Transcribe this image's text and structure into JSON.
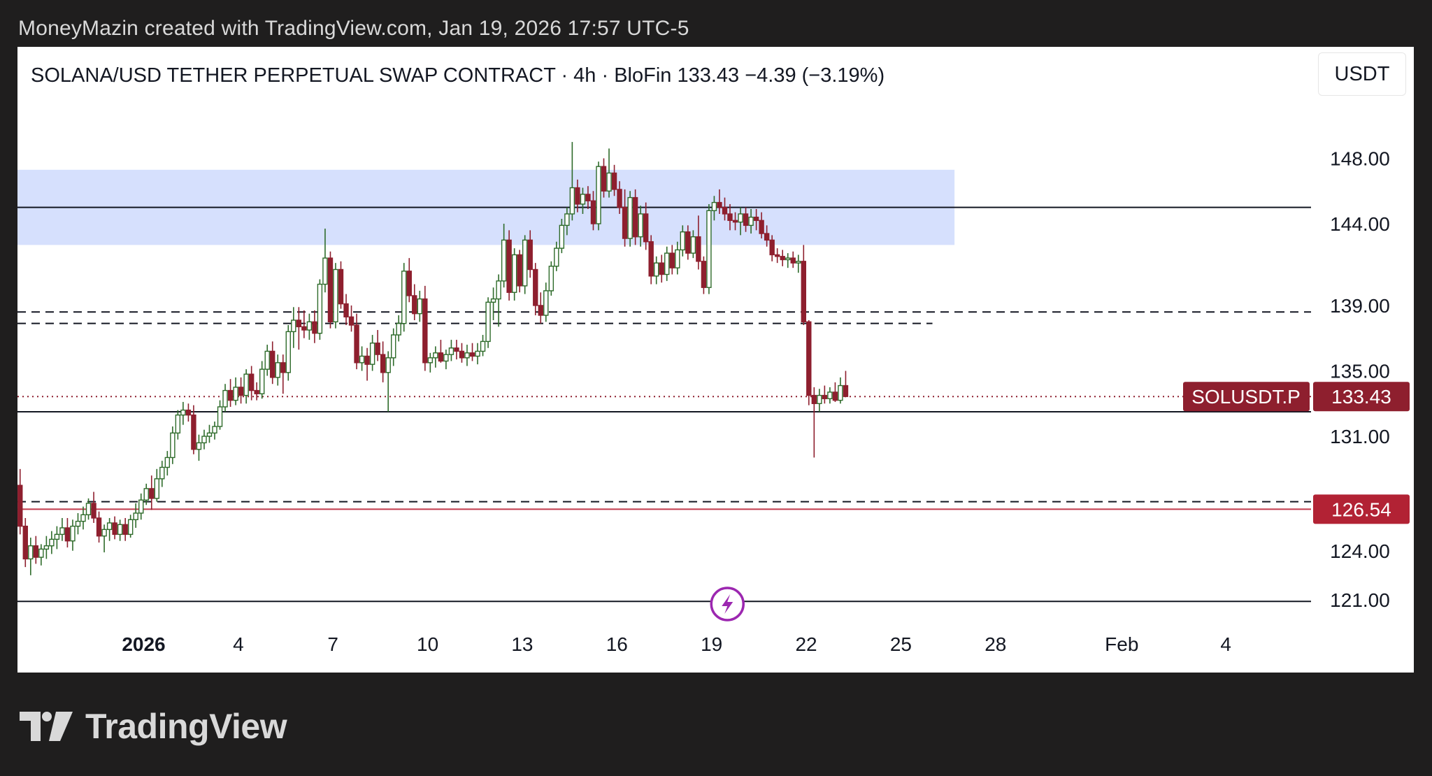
{
  "header": {
    "credit": "MoneyMazin created with TradingView.com, Jan 19, 2026 17:57 UTC-5"
  },
  "chart_header": {
    "symbol_title": "SOLANA/USD TETHER PERPETUAL SWAP CONTRACT · 4h · BloFin  133.43  −4.39 (−3.19%)",
    "currency_button": "USDT"
  },
  "brand": {
    "name": "TradingView",
    "icon": "tradingview-logo-icon"
  },
  "colors": {
    "up": "#2e6b2a",
    "down": "#8e1f2e",
    "zone": "#d6e0fd",
    "price_label": "#8e1f2e",
    "alert_label": "#b22234",
    "alert_line": "#c0394b",
    "lightning": "#9c27b0"
  },
  "chart_data": {
    "type": "candlestick",
    "symbol": "SOLUSDT.P",
    "timeframe": "4h",
    "exchange": "BloFin",
    "last_price": 133.43,
    "change": "−4.39 (−3.19%)",
    "ylim": [
      119.5,
      150.5
    ],
    "x_days_range": [
      -3.0,
      38.0
    ],
    "y_ticks": [
      {
        "v": 148,
        "label": "148.00"
      },
      {
        "v": 144,
        "label": "144.00"
      },
      {
        "v": 139,
        "label": "139.00"
      },
      {
        "v": 135,
        "label": "135.00"
      },
      {
        "v": 131,
        "label": "131.00"
      },
      {
        "v": 124,
        "label": "124.00"
      },
      {
        "v": 121,
        "label": "121.00"
      }
    ],
    "x_ticks": [
      {
        "day": 1,
        "label": "2026",
        "bold": true
      },
      {
        "day": 4,
        "label": "4"
      },
      {
        "day": 7,
        "label": "7"
      },
      {
        "day": 10,
        "label": "10"
      },
      {
        "day": 13,
        "label": "13"
      },
      {
        "day": 16,
        "label": "16"
      },
      {
        "day": 19,
        "label": "19"
      },
      {
        "day": 22,
        "label": "22"
      },
      {
        "day": 25,
        "label": "25"
      },
      {
        "day": 28,
        "label": "28"
      },
      {
        "day": 32,
        "label": "Feb"
      },
      {
        "day": 35.3,
        "label": "4"
      }
    ],
    "zones": [
      {
        "y1": 147.3,
        "y2": 142.7,
        "day_end": 26.7
      }
    ],
    "hlines": [
      {
        "v": 145.0,
        "style": "solid"
      },
      {
        "v": 138.6,
        "style": "dashed"
      },
      {
        "v": 137.9,
        "style": "dashed",
        "day_end": 26.0
      },
      {
        "v": 132.5,
        "style": "solid"
      },
      {
        "v": 127.0,
        "style": "dashed"
      },
      {
        "v": 120.9,
        "style": "solid"
      }
    ],
    "price_line": {
      "v": 133.43,
      "label": "133.43",
      "tag": "SOLUSDT.P"
    },
    "alert_line": {
      "v": 126.54,
      "label": "126.54"
    },
    "event_marker": {
      "day": 19.5,
      "icon": "lightning-icon"
    },
    "candles": [
      [
        -2.917,
        128.0,
        129.0,
        125.0,
        125.5
      ],
      [
        -2.75,
        125.5,
        126.0,
        123.0,
        123.5
      ],
      [
        -2.583,
        123.5,
        124.8,
        122.5,
        124.3
      ],
      [
        -2.417,
        124.3,
        124.9,
        123.2,
        123.6
      ],
      [
        -2.25,
        123.6,
        124.4,
        123.1,
        124.1
      ],
      [
        -2.083,
        124.1,
        124.9,
        123.5,
        124.3
      ],
      [
        -1.917,
        124.3,
        125.2,
        123.8,
        124.7
      ],
      [
        -1.75,
        124.7,
        125.5,
        124.1,
        125.0
      ],
      [
        -1.583,
        125.0,
        126.0,
        124.6,
        125.4
      ],
      [
        -1.417,
        125.4,
        126.0,
        124.2,
        124.6
      ],
      [
        -1.25,
        124.6,
        125.9,
        124.0,
        125.5
      ],
      [
        -1.083,
        125.5,
        126.3,
        125.0,
        125.8
      ],
      [
        -0.917,
        125.8,
        126.7,
        125.3,
        126.2
      ],
      [
        -0.75,
        126.2,
        127.2,
        125.9,
        126.9
      ],
      [
        -0.583,
        126.9,
        127.6,
        125.7,
        126.0
      ],
      [
        -0.417,
        126.0,
        126.4,
        124.5,
        124.9
      ],
      [
        -0.25,
        124.9,
        125.6,
        123.9,
        125.3
      ],
      [
        -0.083,
        125.3,
        126.0,
        124.6,
        125.7
      ],
      [
        0.083,
        125.7,
        126.1,
        124.7,
        125.0
      ],
      [
        0.25,
        125.0,
        125.9,
        124.6,
        125.6
      ],
      [
        0.417,
        125.6,
        126.0,
        124.6,
        125.0
      ],
      [
        0.583,
        125.0,
        126.2,
        124.8,
        125.9
      ],
      [
        0.75,
        125.9,
        126.9,
        125.4,
        126.3
      ],
      [
        0.917,
        126.3,
        127.5,
        125.9,
        127.1
      ],
      [
        1.083,
        127.1,
        128.1,
        126.8,
        127.8
      ],
      [
        1.25,
        127.8,
        128.6,
        126.5,
        127.2
      ],
      [
        1.417,
        127.2,
        129.0,
        127.0,
        128.4
      ],
      [
        1.583,
        128.4,
        129.5,
        127.9,
        129.1
      ],
      [
        1.75,
        129.1,
        130.1,
        128.6,
        129.7
      ],
      [
        1.917,
        129.7,
        131.6,
        129.3,
        131.2
      ],
      [
        2.083,
        131.2,
        132.6,
        130.8,
        132.3
      ],
      [
        2.25,
        132.3,
        133.1,
        131.7,
        132.6
      ],
      [
        2.417,
        132.6,
        133.0,
        131.9,
        132.3
      ],
      [
        2.583,
        132.3,
        132.9,
        129.9,
        130.2
      ],
      [
        2.75,
        130.2,
        131.1,
        129.5,
        130.6
      ],
      [
        2.917,
        130.6,
        131.4,
        130.2,
        131.0
      ],
      [
        3.083,
        131.0,
        131.7,
        130.6,
        131.2
      ],
      [
        3.25,
        131.2,
        131.9,
        130.8,
        131.6
      ],
      [
        3.417,
        131.6,
        133.2,
        131.4,
        132.8
      ],
      [
        3.583,
        132.8,
        134.2,
        132.5,
        133.8
      ],
      [
        3.75,
        133.8,
        134.5,
        132.8,
        133.2
      ],
      [
        3.917,
        133.2,
        134.6,
        132.9,
        134.0
      ],
      [
        4.083,
        134.0,
        134.6,
        133.0,
        133.5
      ],
      [
        4.25,
        133.5,
        135.1,
        133.0,
        134.8
      ],
      [
        4.417,
        134.8,
        135.3,
        133.2,
        133.8
      ],
      [
        4.583,
        133.8,
        134.3,
        133.2,
        133.6
      ],
      [
        4.75,
        133.6,
        135.6,
        133.3,
        135.1
      ],
      [
        4.917,
        135.1,
        136.6,
        134.7,
        136.2
      ],
      [
        5.083,
        136.2,
        136.8,
        134.2,
        134.6
      ],
      [
        5.25,
        134.6,
        136.0,
        134.1,
        135.5
      ],
      [
        5.417,
        135.5,
        136.0,
        133.6,
        134.9
      ],
      [
        5.583,
        134.9,
        137.8,
        134.4,
        137.4
      ],
      [
        5.75,
        137.4,
        138.9,
        136.4,
        138.1
      ],
      [
        5.917,
        138.1,
        138.9,
        136.3,
        137.7
      ],
      [
        6.083,
        137.7,
        138.7,
        137.0,
        137.5
      ],
      [
        6.25,
        137.5,
        138.5,
        136.9,
        138.0
      ],
      [
        6.417,
        138.0,
        138.7,
        136.7,
        137.3
      ],
      [
        6.583,
        137.3,
        140.6,
        136.9,
        140.3
      ],
      [
        6.75,
        140.3,
        143.7,
        139.8,
        141.9
      ],
      [
        6.917,
        141.9,
        142.3,
        137.6,
        138.0
      ],
      [
        7.083,
        138.0,
        141.6,
        137.6,
        141.2
      ],
      [
        7.25,
        141.2,
        141.7,
        138.8,
        139.1
      ],
      [
        7.417,
        139.1,
        139.7,
        137.8,
        138.3
      ],
      [
        7.583,
        138.3,
        139.0,
        137.4,
        137.8
      ],
      [
        7.75,
        137.8,
        138.5,
        135.1,
        135.5
      ],
      [
        7.917,
        135.5,
        136.5,
        135.0,
        135.9
      ],
      [
        8.083,
        135.9,
        136.4,
        134.4,
        135.4
      ],
      [
        8.25,
        135.4,
        137.2,
        135.0,
        136.7
      ],
      [
        8.417,
        136.7,
        137.5,
        135.6,
        136.0
      ],
      [
        8.583,
        136.0,
        136.8,
        134.3,
        134.9
      ],
      [
        8.75,
        134.9,
        136.2,
        132.5,
        135.8
      ],
      [
        8.917,
        135.8,
        137.6,
        135.3,
        137.2
      ],
      [
        9.083,
        137.2,
        138.4,
        136.8,
        137.9
      ],
      [
        9.25,
        137.9,
        141.6,
        137.4,
        141.1
      ],
      [
        9.417,
        141.1,
        141.9,
        139.2,
        139.6
      ],
      [
        9.583,
        139.6,
        140.3,
        138.1,
        138.5
      ],
      [
        9.75,
        138.5,
        139.9,
        138.0,
        139.4
      ],
      [
        9.917,
        139.4,
        140.2,
        135.0,
        135.5
      ],
      [
        10.083,
        135.5,
        136.1,
        134.9,
        135.8
      ],
      [
        10.25,
        135.8,
        136.5,
        135.2,
        136.1
      ],
      [
        10.417,
        136.1,
        136.9,
        135.5,
        135.6
      ],
      [
        10.583,
        135.6,
        136.3,
        135.1,
        136.0
      ],
      [
        10.75,
        136.0,
        136.9,
        135.6,
        136.4
      ],
      [
        10.917,
        136.4,
        136.9,
        135.7,
        136.2
      ],
      [
        11.083,
        136.2,
        136.7,
        135.5,
        135.8
      ],
      [
        11.25,
        135.8,
        136.6,
        135.3,
        136.1
      ],
      [
        11.417,
        136.1,
        136.7,
        135.6,
        135.9
      ],
      [
        11.583,
        135.9,
        136.7,
        135.4,
        136.2
      ],
      [
        11.75,
        136.2,
        137.2,
        135.9,
        136.8
      ],
      [
        11.917,
        136.8,
        139.5,
        136.4,
        139.2
      ],
      [
        12.083,
        139.2,
        140.1,
        138.1,
        139.4
      ],
      [
        12.25,
        139.4,
        140.9,
        137.7,
        140.5
      ],
      [
        12.417,
        140.5,
        144.0,
        140.1,
        143.0
      ],
      [
        12.583,
        143.0,
        143.6,
        139.3,
        139.8
      ],
      [
        12.75,
        139.8,
        142.5,
        139.3,
        142.1
      ],
      [
        12.917,
        142.1,
        142.4,
        139.8,
        140.2
      ],
      [
        13.083,
        140.2,
        143.3,
        139.7,
        143.0
      ],
      [
        13.25,
        143.0,
        143.6,
        140.7,
        141.2
      ],
      [
        13.417,
        141.2,
        141.6,
        138.4,
        139.0
      ],
      [
        13.583,
        139.0,
        139.8,
        137.9,
        138.4
      ],
      [
        13.75,
        138.4,
        140.4,
        138.0,
        139.9
      ],
      [
        13.917,
        139.9,
        141.7,
        139.6,
        141.4
      ],
      [
        14.083,
        141.4,
        142.9,
        141.1,
        142.5
      ],
      [
        14.25,
        142.5,
        144.3,
        142.2,
        143.9
      ],
      [
        14.417,
        143.9,
        145.0,
        143.3,
        144.6
      ],
      [
        14.583,
        144.6,
        149.0,
        144.2,
        146.2
      ],
      [
        14.75,
        146.2,
        146.7,
        144.7,
        145.2
      ],
      [
        14.917,
        145.2,
        146.2,
        144.6,
        145.8
      ],
      [
        15.083,
        145.8,
        146.3,
        144.9,
        145.4
      ],
      [
        15.25,
        145.4,
        146.0,
        143.6,
        144.0
      ],
      [
        15.417,
        144.0,
        147.8,
        143.6,
        147.5
      ],
      [
        15.583,
        147.5,
        148.0,
        145.6,
        146.0
      ],
      [
        15.75,
        146.0,
        148.6,
        145.6,
        147.1
      ],
      [
        15.917,
        147.1,
        147.6,
        145.7,
        146.1
      ],
      [
        16.083,
        146.1,
        146.6,
        144.6,
        145.0
      ],
      [
        16.25,
        145.0,
        146.1,
        142.6,
        143.1
      ],
      [
        16.417,
        143.1,
        146.0,
        142.6,
        145.6
      ],
      [
        16.583,
        145.6,
        146.1,
        142.7,
        143.2
      ],
      [
        16.75,
        143.2,
        145.1,
        142.6,
        144.6
      ],
      [
        16.917,
        144.6,
        145.3,
        142.4,
        142.9
      ],
      [
        17.083,
        142.9,
        143.3,
        140.3,
        140.8
      ],
      [
        17.25,
        140.8,
        142.0,
        140.3,
        141.6
      ],
      [
        17.417,
        141.6,
        142.1,
        140.4,
        140.9
      ],
      [
        17.583,
        140.9,
        142.6,
        140.5,
        142.2
      ],
      [
        17.75,
        142.2,
        142.7,
        140.9,
        141.3
      ],
      [
        17.917,
        141.3,
        142.9,
        140.9,
        142.4
      ],
      [
        18.083,
        142.4,
        143.9,
        142.0,
        143.5
      ],
      [
        18.25,
        143.5,
        143.9,
        141.8,
        142.2
      ],
      [
        18.417,
        142.2,
        143.6,
        141.9,
        143.2
      ],
      [
        18.583,
        143.2,
        144.5,
        141.2,
        141.7
      ],
      [
        18.75,
        141.7,
        142.0,
        139.7,
        140.1
      ],
      [
        18.917,
        140.1,
        145.2,
        139.7,
        144.8
      ],
      [
        19.083,
        144.8,
        145.7,
        144.2,
        145.3
      ],
      [
        19.25,
        145.3,
        146.1,
        144.6,
        145.0
      ],
      [
        19.417,
        145.0,
        145.6,
        144.2,
        144.6
      ],
      [
        19.583,
        144.6,
        145.2,
        143.6,
        144.2
      ],
      [
        19.75,
        144.2,
        144.7,
        143.6,
        144.1
      ],
      [
        19.917,
        144.1,
        145.0,
        143.3,
        144.6
      ],
      [
        20.083,
        144.6,
        145.0,
        143.5,
        143.9
      ],
      [
        20.25,
        143.9,
        144.9,
        143.4,
        144.4
      ],
      [
        20.417,
        144.4,
        144.9,
        143.6,
        144.2
      ],
      [
        20.583,
        144.2,
        144.7,
        143.1,
        143.4
      ],
      [
        20.75,
        143.4,
        143.9,
        142.6,
        143.0
      ],
      [
        20.917,
        143.0,
        143.3,
        141.7,
        142.1
      ],
      [
        21.083,
        142.1,
        142.5,
        141.6,
        142.0
      ],
      [
        21.25,
        142.0,
        142.4,
        141.4,
        141.8
      ],
      [
        21.417,
        141.8,
        142.2,
        141.3,
        141.9
      ],
      [
        21.583,
        141.9,
        142.3,
        141.3,
        141.6
      ],
      [
        21.75,
        141.6,
        142.1,
        141.0,
        141.7
      ],
      [
        21.917,
        141.7,
        142.7,
        137.8,
        138.0
      ],
      [
        22.083,
        138.0,
        138.1,
        132.9,
        133.5
      ],
      [
        22.25,
        133.5,
        134.0,
        129.7,
        133.0
      ],
      [
        22.417,
        133.0,
        133.9,
        132.5,
        133.5
      ],
      [
        22.583,
        133.5,
        134.1,
        133.0,
        133.3
      ],
      [
        22.75,
        133.3,
        134.0,
        133.0,
        133.7
      ],
      [
        22.917,
        133.7,
        134.3,
        133.1,
        133.2
      ],
      [
        23.083,
        133.2,
        134.6,
        133.0,
        134.1
      ],
      [
        23.25,
        134.1,
        135.0,
        133.5,
        133.43
      ]
    ]
  }
}
